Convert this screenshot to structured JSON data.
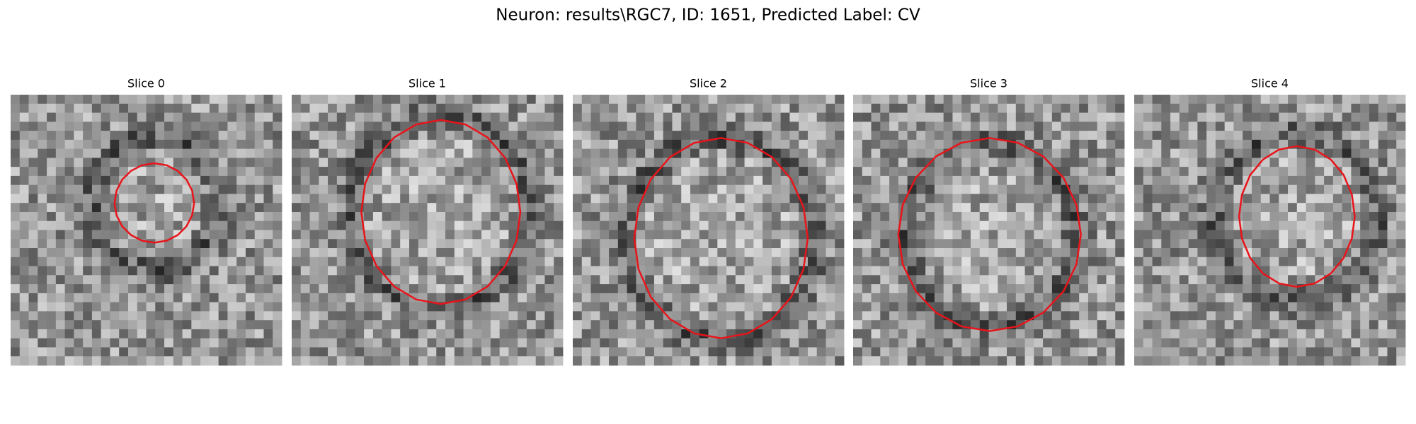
{
  "title": "Neuron: results\\RGC7, ID: 1651, Predicted Label: CV",
  "panels": [
    {
      "title": "Slice 0"
    },
    {
      "title": "Slice 1"
    },
    {
      "title": "Slice 2"
    },
    {
      "title": "Slice 3"
    },
    {
      "title": "Slice 4"
    }
  ]
}
